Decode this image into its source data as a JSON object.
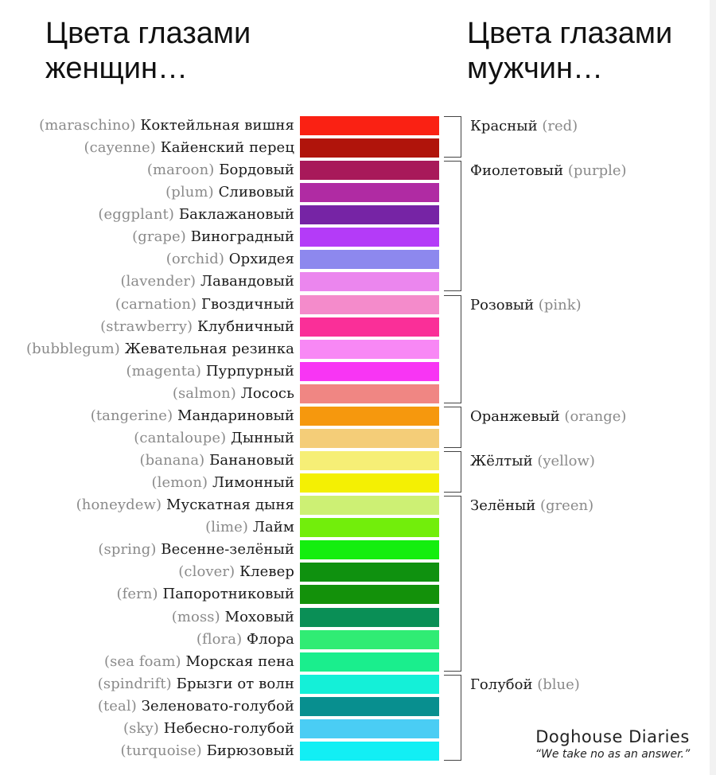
{
  "header": {
    "women_title": "Цвета глазами\nженщин…",
    "men_title": "Цвета глазами\nмужчин…"
  },
  "colors": [
    {
      "en": "(maraschino)",
      "ru": "Коктейльная вишня",
      "hex": "#fa2113"
    },
    {
      "en": "(cayenne)",
      "ru": "Кайенский перец",
      "hex": "#b0140b"
    },
    {
      "en": "(maroon)",
      "ru": "Бордовый",
      "hex": "#a8195a"
    },
    {
      "en": "(plum)",
      "ru": "Сливовый",
      "hex": "#b02ba3"
    },
    {
      "en": "(eggplant)",
      "ru": "Баклажановый",
      "hex": "#7624a5"
    },
    {
      "en": "(grape)",
      "ru": "Виноградный",
      "hex": "#b43bf8"
    },
    {
      "en": "(orchid)",
      "ru": "Орхидея",
      "hex": "#8d88ee"
    },
    {
      "en": "(lavender)",
      "ru": "Лавандовый",
      "hex": "#eb86ee"
    },
    {
      "en": "(carnation)",
      "ru": "Гвоздичный",
      "hex": "#f48bcb"
    },
    {
      "en": "(strawberry)",
      "ru": "Клубничный",
      "hex": "#fa2f98"
    },
    {
      "en": "(bubblegum)",
      "ru": "Жевательная резинка",
      "hex": "#f888f5"
    },
    {
      "en": "(magenta)",
      "ru": "Пурпурный",
      "hex": "#f835f4"
    },
    {
      "en": "(salmon)",
      "ru": "Лосось",
      "hex": "#f08683"
    },
    {
      "en": "(tangerine)",
      "ru": "Мандариновый",
      "hex": "#f6980d"
    },
    {
      "en": "(cantaloupe)",
      "ru": "Дынный",
      "hex": "#f4cd78"
    },
    {
      "en": "(banana)",
      "ru": "Банановый",
      "hex": "#f6ef76"
    },
    {
      "en": "(lemon)",
      "ru": "Лимонный",
      "hex": "#f4f003"
    },
    {
      "en": "(honeydew)",
      "ru": "Мускатная дыня",
      "hex": "#cdf074"
    },
    {
      "en": "(lime)",
      "ru": "Лайм",
      "hex": "#72ee0b"
    },
    {
      "en": "(spring)",
      "ru": "Весенне-зелёный",
      "hex": "#14ee0f"
    },
    {
      "en": "(clover)",
      "ru": "Клевер",
      "hex": "#0f910f"
    },
    {
      "en": "(fern)",
      "ru": "Папоротниковый",
      "hex": "#13910a"
    },
    {
      "en": "(moss)",
      "ru": "Моховый",
      "hex": "#0a8f56"
    },
    {
      "en": "(flora)",
      "ru": "Флора",
      "hex": "#30ec74"
    },
    {
      "en": "(sea foam)",
      "ru": "Морская пена",
      "hex": "#1aee8d"
    },
    {
      "en": "(spindrift)",
      "ru": "Брызги от волн",
      "hex": "#14f0d8"
    },
    {
      "en": "(teal)",
      "ru": "Зеленовато-голубой",
      "hex": "#088f8f"
    },
    {
      "en": "(sky)",
      "ru": "Небесно-голубой",
      "hex": "#4acdf4"
    },
    {
      "en": "(turquoise)",
      "ru": "Бирюзовый",
      "hex": "#12eff4"
    }
  ],
  "groups": [
    {
      "ru": "Красный",
      "en": "(red)",
      "start": 0,
      "end": 1
    },
    {
      "ru": "Фиолетовый",
      "en": "(purple)",
      "start": 2,
      "end": 7
    },
    {
      "ru": "Розовый",
      "en": "(pink)",
      "start": 8,
      "end": 12
    },
    {
      "ru": "Оранжевый",
      "en": "(orange)",
      "start": 13,
      "end": 14
    },
    {
      "ru": "Жёлтый",
      "en": "(yellow)",
      "start": 15,
      "end": 16
    },
    {
      "ru": "Зелёный",
      "en": "(green)",
      "start": 17,
      "end": 24
    },
    {
      "ru": "Голубой",
      "en": "(blue)",
      "start": 25,
      "end": 28
    }
  ],
  "credit": {
    "brand": "Doghouse Diaries",
    "tagline": "“We take no as an answer.”"
  }
}
